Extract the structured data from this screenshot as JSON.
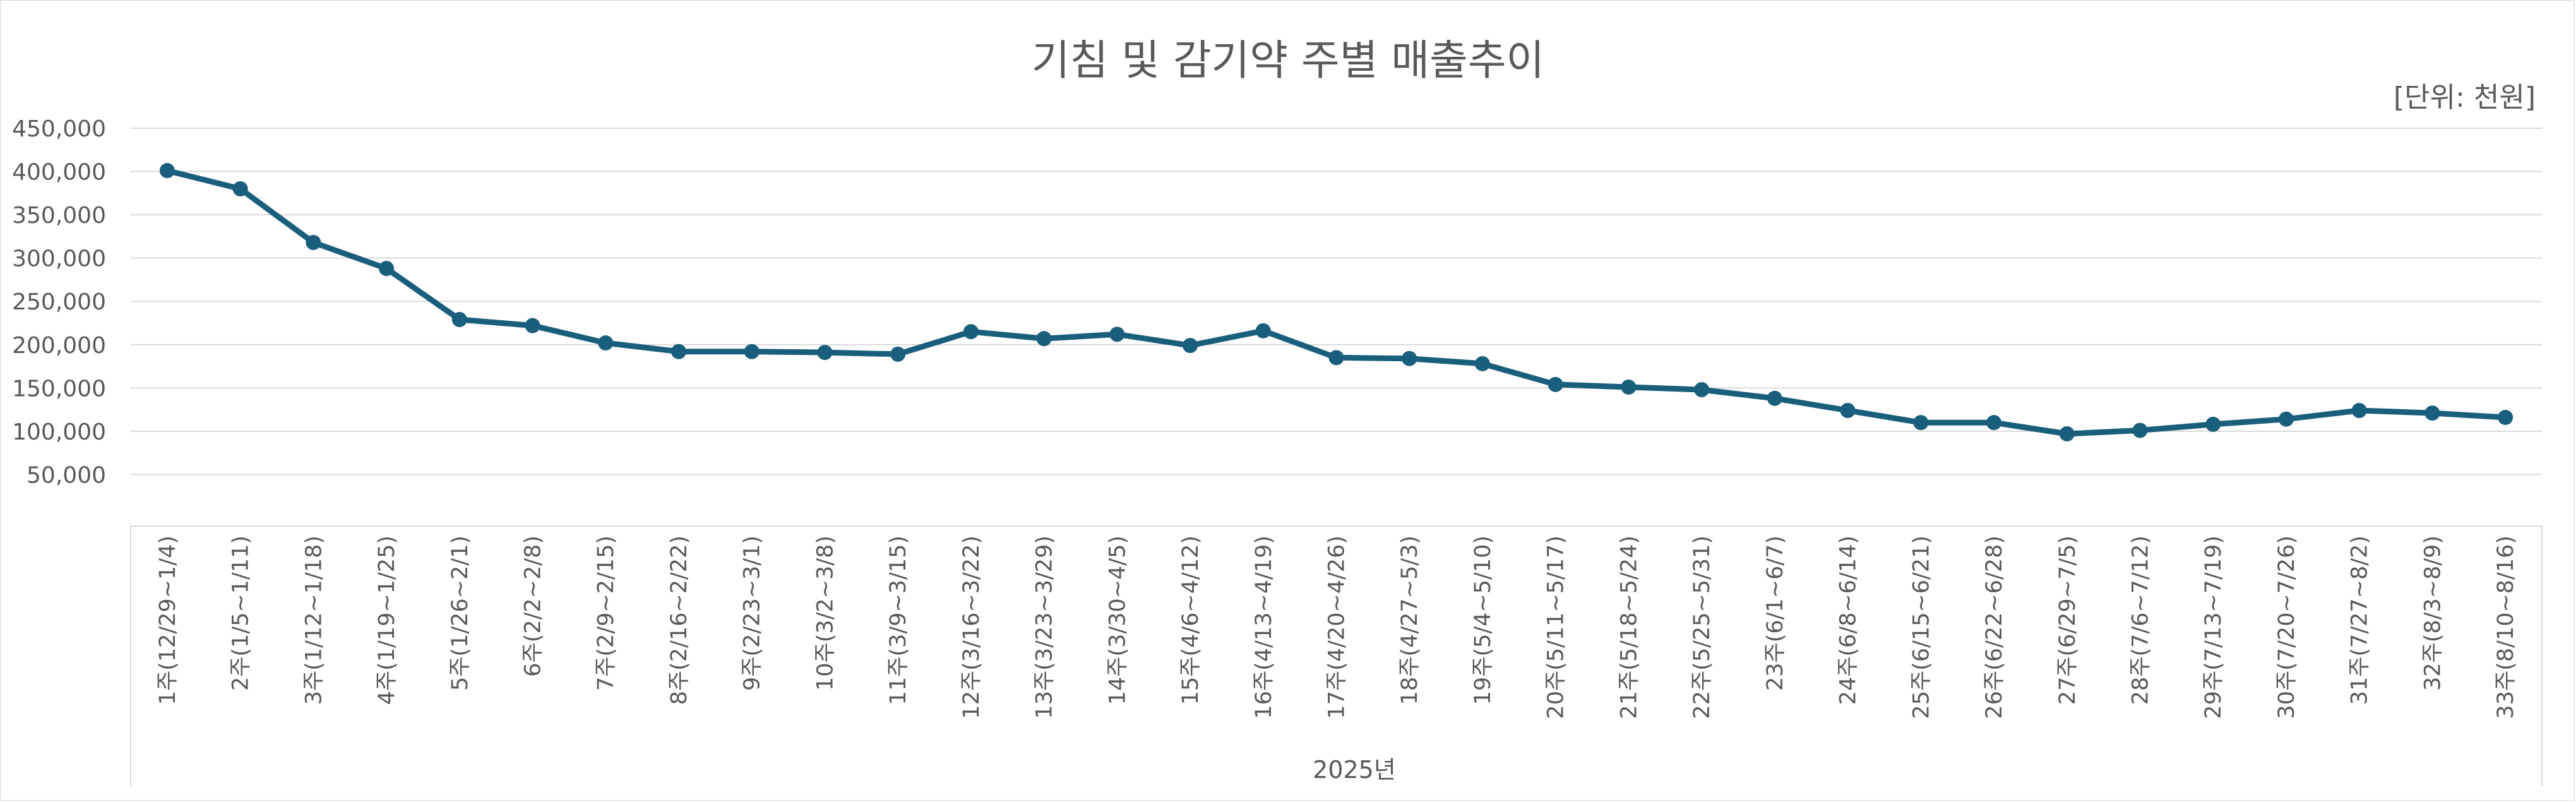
{
  "chart_data": {
    "type": "line",
    "title": "기침 및 감기약 주별 매출추이",
    "unit_note": "[단위: 천원]",
    "xlabel": "2025년",
    "ylabel": "",
    "ylim": [
      0,
      450000
    ],
    "yticks": [
      "50,000",
      "100,000",
      "150,000",
      "200,000",
      "250,000",
      "300,000",
      "350,000",
      "400,000",
      "450,000"
    ],
    "grid": true,
    "legend": "none",
    "line_color": "#1a5e7e",
    "categories": [
      "1주(12/29~1/4)",
      "2주(1/5~1/11)",
      "3주(1/12~1/18)",
      "4주(1/19~1/25)",
      "5주(1/26~2/1)",
      "6주(2/2~2/8)",
      "7주(2/9~2/15)",
      "8주(2/16~2/22)",
      "9주(2/23~3/1)",
      "10주(3/2~3/8)",
      "11주(3/9~3/15)",
      "12주(3/16~3/22)",
      "13주(3/23~3/29)",
      "14주(3/30~4/5)",
      "15주(4/6~4/12)",
      "16주(4/13~4/19)",
      "17주(4/20~4/26)",
      "18주(4/27~5/3)",
      "19주(5/4~5/10)",
      "20주(5/11~5/17)",
      "21주(5/18~5/24)",
      "22주(5/25~5/31)",
      "23주(6/1~6/7)",
      "24주(6/8~6/14)",
      "25주(6/15~6/21)",
      "26주(6/22~6/28)",
      "27주(6/29~7/5)",
      "28주(7/6~7/12)",
      "29주(7/13~7/19)",
      "30주(7/20~7/26)",
      "31주(7/27~8/2)",
      "32주(8/3~8/9)",
      "33주(8/10~8/16)"
    ],
    "series": [
      {
        "values": [
          401000,
          380000,
          318000,
          288000,
          229000,
          222000,
          202000,
          192000,
          192000,
          191000,
          189000,
          215000,
          207000,
          212000,
          199000,
          216000,
          185000,
          184000,
          178000,
          154000,
          151000,
          148000,
          138000,
          124000,
          110000,
          110000,
          97000,
          101000,
          108000,
          114000,
          124000,
          121000,
          116000
        ]
      }
    ]
  }
}
